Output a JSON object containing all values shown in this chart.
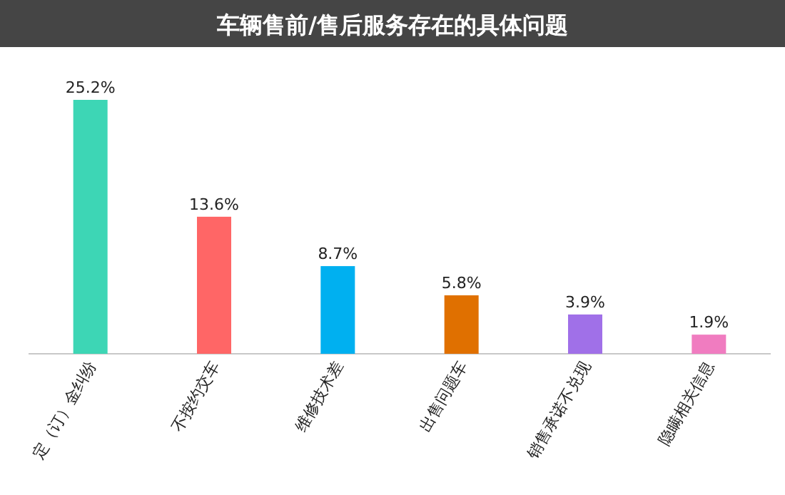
{
  "chart_data": {
    "type": "bar",
    "title": "车辆售前/售后服务存在的具体问题",
    "categories": [
      "定（订）金纠纷",
      "不按约交车",
      "维修技术差",
      "出售问题车",
      "销售承诺不兑现",
      "隐瞒相关信息"
    ],
    "values": [
      25.2,
      13.6,
      8.7,
      5.8,
      3.9,
      1.9
    ],
    "colors": [
      "#3dd6b5",
      "#ff6666",
      "#00b0f0",
      "#e07000",
      "#a070e8",
      "#f07cc0"
    ],
    "value_labels": [
      "25.2%",
      "13.6%",
      "8.7%",
      "5.8%",
      "3.9%",
      "1.9%"
    ]
  }
}
